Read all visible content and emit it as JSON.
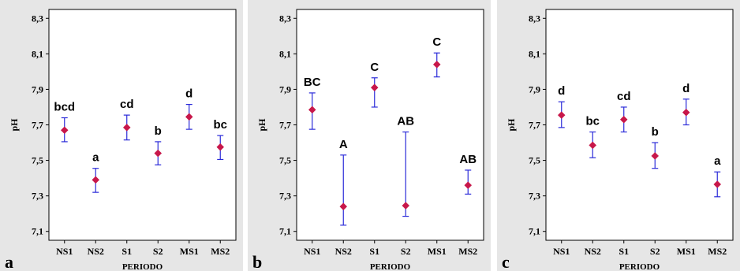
{
  "figure": {
    "background": "#e6e6e6",
    "error_bar_color": "#2b2bd9",
    "marker_color": "#c8174a"
  },
  "chart_data": [
    {
      "type": "scatter",
      "panel_label": "a",
      "xlabel": "PERIODO",
      "ylabel": "pH",
      "categories": [
        "NS1",
        "NS2",
        "S1",
        "S2",
        "MS1",
        "MS2"
      ],
      "ylim": [
        7.05,
        8.35
      ],
      "yticks": [
        "7,1",
        "7,3",
        "7,5",
        "7,7",
        "7,9",
        "8,1",
        "8,3"
      ],
      "mean": [
        7.67,
        7.39,
        7.685,
        7.54,
        7.745,
        7.575
      ],
      "lower": [
        7.605,
        7.32,
        7.615,
        7.475,
        7.675,
        7.505
      ],
      "upper": [
        7.74,
        7.455,
        7.755,
        7.605,
        7.815,
        7.64
      ],
      "group_labels": [
        "bcd",
        "a",
        "cd",
        "b",
        "d",
        "bc"
      ],
      "grid": false
    },
    {
      "type": "scatter",
      "panel_label": "b",
      "xlabel": "PERIODO",
      "ylabel": "pH",
      "categories": [
        "NS1",
        "NS2",
        "S1",
        "S2",
        "MS1",
        "MS2"
      ],
      "ylim": [
        7.05,
        8.35
      ],
      "yticks": [
        "7,1",
        "7,3",
        "7,5",
        "7,7",
        "7,9",
        "8,1",
        "8,3"
      ],
      "mean": [
        7.785,
        7.24,
        7.91,
        7.245,
        8.04,
        7.36
      ],
      "lower": [
        7.675,
        7.135,
        7.8,
        7.185,
        7.97,
        7.31
      ],
      "upper": [
        7.88,
        7.53,
        7.965,
        7.66,
        8.105,
        7.445
      ],
      "group_labels": [
        "BC",
        "A",
        "C",
        "AB",
        "C",
        "AB"
      ],
      "grid": false
    },
    {
      "type": "scatter",
      "panel_label": "c",
      "xlabel": "PERIODO",
      "ylabel": "pH",
      "categories": [
        "NS1",
        "NS2",
        "S1",
        "S2",
        "MS1",
        "MS2"
      ],
      "ylim": [
        7.05,
        8.35
      ],
      "yticks": [
        "7,1",
        "7,3",
        "7,5",
        "7,7",
        "7,9",
        "8,1",
        "8,3"
      ],
      "mean": [
        7.755,
        7.585,
        7.73,
        7.525,
        7.77,
        7.365
      ],
      "lower": [
        7.685,
        7.515,
        7.66,
        7.455,
        7.7,
        7.295
      ],
      "upper": [
        7.83,
        7.66,
        7.8,
        7.6,
        7.845,
        7.435
      ],
      "group_labels": [
        "d",
        "bc",
        "cd",
        "b",
        "d",
        "a"
      ],
      "grid": false
    }
  ]
}
